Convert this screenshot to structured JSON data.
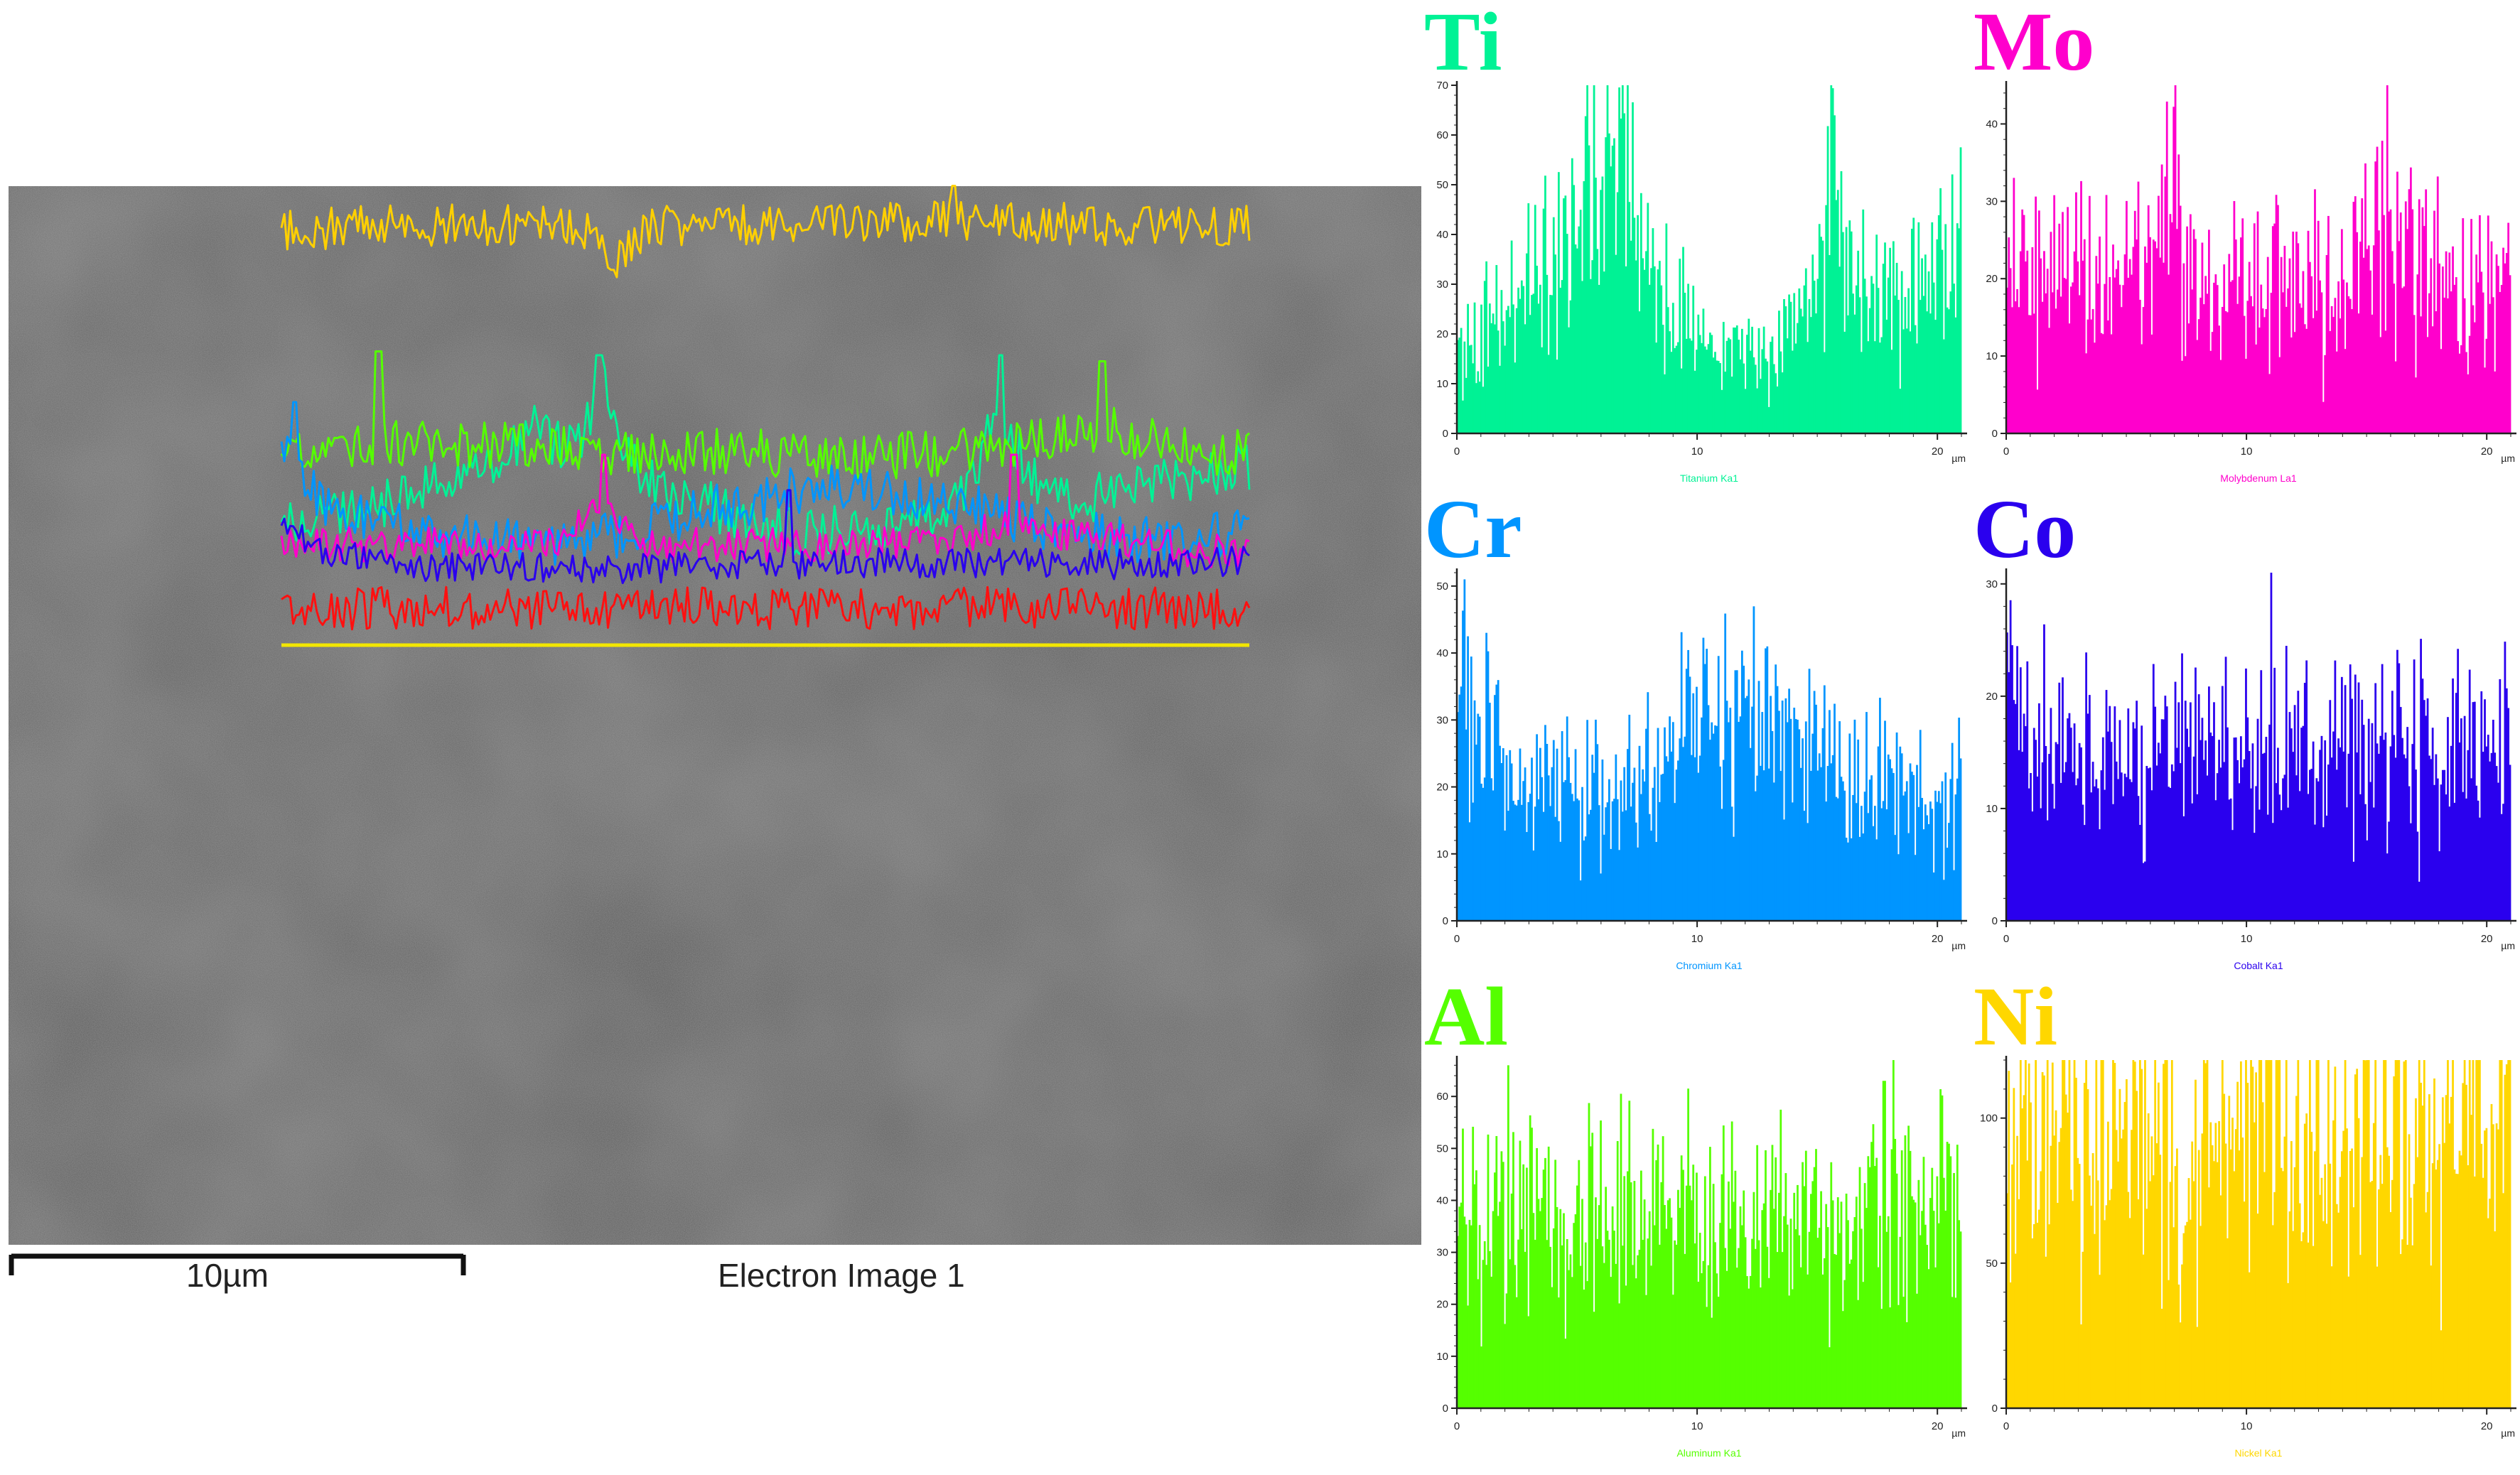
{
  "electron_image": {
    "caption": "Electron Image 1",
    "scale_label": "10µm",
    "scale_um": 10
  },
  "chart_data": [
    {
      "type": "bar",
      "symbol": "Ti",
      "xlabel": "Titanium Ka1",
      "x_unit": "µm",
      "xlim": [
        0,
        21
      ],
      "ylim": [
        0,
        70
      ],
      "yticks": [
        0,
        10,
        20,
        30,
        40,
        50,
        60,
        70
      ],
      "xticks": [
        0,
        10,
        20
      ],
      "color": "#00f295",
      "profile_um": [
        0,
        1,
        2,
        3,
        4,
        5,
        5.5,
        6,
        6.5,
        7,
        7.5,
        8,
        9,
        10,
        11,
        12,
        13,
        14,
        14.5,
        15,
        15.5,
        16,
        16.5,
        17,
        18,
        19,
        20,
        21
      ],
      "profile_counts": [
        17,
        20,
        24,
        28,
        33,
        40,
        48,
        42,
        46,
        63,
        38,
        32,
        25,
        20,
        16,
        16,
        17,
        18,
        22,
        30,
        56,
        40,
        28,
        27,
        26,
        30,
        34,
        36
      ],
      "peaks": [
        {
          "x": 6.9,
          "y": 70
        },
        {
          "x": 15.6,
          "y": 70
        }
      ]
    },
    {
      "type": "bar",
      "symbol": "Mo",
      "xlabel": "Molybdenum La1",
      "x_unit": "µm",
      "xlim": [
        0,
        21
      ],
      "ylim": [
        0,
        45
      ],
      "yticks": [
        0,
        10,
        20,
        30,
        40
      ],
      "xticks": [
        0,
        10,
        20
      ],
      "color": "#ff00cc",
      "profile_um": [
        0,
        2,
        4,
        6,
        6.5,
        7,
        7.5,
        8,
        10,
        12,
        14,
        15,
        16,
        16.5,
        18,
        20,
        21
      ],
      "profile_counts": [
        20,
        19,
        19,
        20,
        25,
        30,
        24,
        19,
        19,
        19,
        20,
        22,
        25,
        22,
        21,
        17,
        18
      ],
      "peaks": [
        {
          "x": 7.0,
          "y": 45
        },
        {
          "x": 15.9,
          "y": 45
        }
      ]
    },
    {
      "type": "bar",
      "symbol": "Cr",
      "xlabel": "Chromium Ka1",
      "x_unit": "µm",
      "xlim": [
        0,
        21
      ],
      "ylim": [
        0,
        52
      ],
      "yticks": [
        0,
        10,
        20,
        30,
        40,
        50
      ],
      "xticks": [
        0,
        10,
        20
      ],
      "color": "#0095ff",
      "profile_um": [
        0,
        0.5,
        1,
        2,
        3,
        4,
        5,
        6,
        7,
        8,
        9,
        10,
        11,
        12,
        13,
        14,
        15,
        16,
        17,
        18,
        19,
        20,
        21
      ],
      "profile_counts": [
        40,
        32,
        26,
        23,
        21,
        19,
        18,
        18,
        19,
        22,
        25,
        27,
        30,
        31,
        30,
        28,
        26,
        23,
        20,
        19,
        18,
        19,
        20
      ],
      "peaks": [
        {
          "x": 0.3,
          "y": 51
        }
      ]
    },
    {
      "type": "bar",
      "symbol": "Co",
      "xlabel": "Cobalt Ka1",
      "x_unit": "µm",
      "xlim": [
        0,
        21
      ],
      "ylim": [
        0,
        31
      ],
      "yticks": [
        0,
        10,
        20,
        30
      ],
      "xticks": [
        0,
        10,
        20
      ],
      "color": "#2a00ee",
      "profile_um": [
        0,
        1,
        2,
        4,
        6,
        8,
        10,
        12,
        14,
        16,
        18,
        20,
        21
      ],
      "profile_counts": [
        22,
        18,
        15,
        14,
        14,
        14,
        15,
        15,
        15,
        15,
        15,
        15,
        16
      ],
      "peaks": [
        {
          "x": 11,
          "y": 31
        }
      ]
    },
    {
      "type": "bar",
      "symbol": "Al",
      "xlabel": "Aluminum Ka1",
      "x_unit": "µm",
      "xlim": [
        0,
        21
      ],
      "ylim": [
        0,
        67
      ],
      "yticks": [
        0,
        10,
        20,
        30,
        40,
        50,
        60
      ],
      "xticks": [
        0,
        10,
        20
      ],
      "color": "#55ff00",
      "profile_um": [
        0,
        2,
        4,
        6,
        8,
        10,
        12,
        14,
        16,
        18,
        20,
        21
      ],
      "profile_counts": [
        33,
        38,
        38,
        36,
        35,
        36,
        34,
        35,
        37,
        42,
        36,
        35
      ],
      "peaks": [
        {
          "x": 2.1,
          "y": 66
        },
        {
          "x": 17.8,
          "y": 63
        }
      ]
    },
    {
      "type": "bar",
      "symbol": "Ni",
      "xlabel": "Nickel Ka1",
      "x_unit": "µm",
      "xlim": [
        0,
        21
      ],
      "ylim": [
        0,
        120
      ],
      "yticks": [
        0,
        50,
        100
      ],
      "xticks": [
        0,
        10,
        20
      ],
      "color": "#ffd700",
      "profile_um": [
        0,
        2,
        4,
        6,
        7,
        7.2,
        7.5,
        8,
        10,
        12,
        14,
        16,
        18,
        20,
        21
      ],
      "profile_counts": [
        88,
        92,
        92,
        92,
        88,
        62,
        80,
        92,
        92,
        92,
        94,
        94,
        92,
        92,
        92
      ],
      "peaks": [
        {
          "x": 14.6,
          "y": 117
        }
      ]
    }
  ],
  "overlay_colors": [
    "#ffd000",
    "#00f295",
    "#55ff00",
    "#0095ff",
    "#ff00cc",
    "#2a00ee",
    "#ff1010"
  ]
}
